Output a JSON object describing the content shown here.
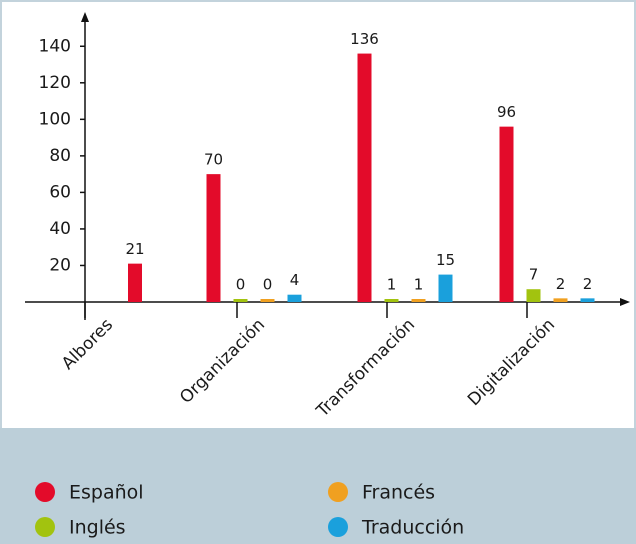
{
  "chart_data": {
    "type": "bar",
    "categories": [
      "Albores",
      "Organización",
      "Transformación",
      "Digitalización"
    ],
    "series": [
      {
        "name": "Español",
        "color": "#e30b2a",
        "values": [
          21,
          70,
          136,
          96
        ]
      },
      {
        "name": "Inglés",
        "color": "#a2c30f",
        "values": [
          null,
          0,
          1,
          7
        ]
      },
      {
        "name": "Francés",
        "color": "#f0a020",
        "values": [
          null,
          0,
          1,
          2
        ]
      },
      {
        "name": "Traducción",
        "color": "#1aa0dc",
        "values": [
          null,
          4,
          15,
          2
        ]
      }
    ],
    "ylim": [
      0,
      150
    ],
    "yticks": [
      20,
      40,
      60,
      80,
      100,
      120,
      140
    ],
    "grid": false
  }
}
